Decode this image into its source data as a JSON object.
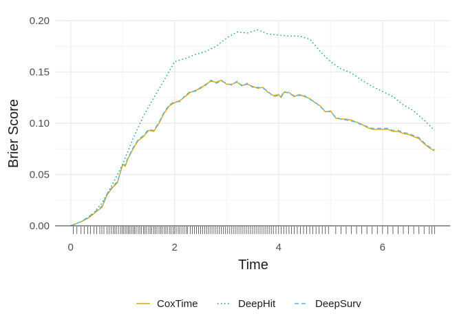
{
  "chart_data": {
    "type": "line",
    "title": "",
    "xlabel": "Time",
    "ylabel": "Brier Score",
    "xlim": [
      -0.3,
      7.3
    ],
    "ylim": [
      -0.0,
      0.2
    ],
    "x_ticks": [
      0,
      2,
      4,
      6
    ],
    "x_tick_labels": [
      "0",
      "2",
      "4",
      "6"
    ],
    "y_ticks": [
      0.0,
      0.05,
      0.1,
      0.15,
      0.2
    ],
    "y_tick_labels": [
      "0.00",
      "0.05",
      "0.10",
      "0.15",
      "0.20"
    ],
    "grid": true,
    "legend_position": "bottom",
    "rug": true,
    "rug_color": "#000000",
    "series": [
      {
        "name": "CoxTime",
        "color": "#E69F00",
        "dash": "solid",
        "points": [
          [
            0,
            0
          ],
          [
            0.2,
            0.004
          ],
          [
            0.35,
            0.008
          ],
          [
            0.5,
            0.014
          ],
          [
            0.6,
            0.018
          ],
          [
            0.7,
            0.03
          ],
          [
            0.8,
            0.037
          ],
          [
            0.9,
            0.042
          ],
          [
            1.0,
            0.06
          ],
          [
            1.05,
            0.058
          ],
          [
            1.1,
            0.065
          ],
          [
            1.2,
            0.075
          ],
          [
            1.3,
            0.083
          ],
          [
            1.4,
            0.087
          ],
          [
            1.5,
            0.093
          ],
          [
            1.6,
            0.092
          ],
          [
            1.7,
            0.1
          ],
          [
            1.8,
            0.11
          ],
          [
            1.9,
            0.117
          ],
          [
            2.0,
            0.12
          ],
          [
            2.1,
            0.122
          ],
          [
            2.2,
            0.126
          ],
          [
            2.3,
            0.13
          ],
          [
            2.4,
            0.132
          ],
          [
            2.5,
            0.134
          ],
          [
            2.6,
            0.138
          ],
          [
            2.7,
            0.141
          ],
          [
            2.8,
            0.14
          ],
          [
            2.9,
            0.142
          ],
          [
            3.0,
            0.138
          ],
          [
            3.1,
            0.138
          ],
          [
            3.2,
            0.14
          ],
          [
            3.3,
            0.137
          ],
          [
            3.4,
            0.138
          ],
          [
            3.5,
            0.136
          ],
          [
            3.6,
            0.134
          ],
          [
            3.7,
            0.135
          ],
          [
            3.8,
            0.13
          ],
          [
            3.9,
            0.127
          ],
          [
            4.0,
            0.128
          ],
          [
            4.05,
            0.125
          ],
          [
            4.1,
            0.13
          ],
          [
            4.2,
            0.13
          ],
          [
            4.3,
            0.126
          ],
          [
            4.4,
            0.128
          ],
          [
            4.5,
            0.126
          ],
          [
            4.6,
            0.124
          ],
          [
            4.7,
            0.12
          ],
          [
            4.8,
            0.117
          ],
          [
            4.9,
            0.111
          ],
          [
            5.0,
            0.112
          ],
          [
            5.1,
            0.105
          ],
          [
            5.2,
            0.104
          ],
          [
            5.3,
            0.104
          ],
          [
            5.4,
            0.103
          ],
          [
            5.5,
            0.101
          ],
          [
            5.6,
            0.099
          ],
          [
            5.7,
            0.096
          ],
          [
            5.8,
            0.094
          ],
          [
            5.9,
            0.094
          ],
          [
            6.0,
            0.094
          ],
          [
            6.1,
            0.094
          ],
          [
            6.2,
            0.092
          ],
          [
            6.3,
            0.092
          ],
          [
            6.4,
            0.09
          ],
          [
            6.5,
            0.089
          ],
          [
            6.6,
            0.087
          ],
          [
            6.7,
            0.085
          ],
          [
            6.8,
            0.08
          ],
          [
            6.9,
            0.076
          ],
          [
            7.0,
            0.073
          ]
        ]
      },
      {
        "name": "DeepHit",
        "color": "#009E73",
        "dash": "dotted",
        "points": [
          [
            0,
            0
          ],
          [
            0.2,
            0.004
          ],
          [
            0.4,
            0.01
          ],
          [
            0.6,
            0.022
          ],
          [
            0.8,
            0.04
          ],
          [
            1.0,
            0.06
          ],
          [
            1.2,
            0.085
          ],
          [
            1.4,
            0.107
          ],
          [
            1.6,
            0.125
          ],
          [
            1.8,
            0.142
          ],
          [
            2.0,
            0.16
          ],
          [
            2.2,
            0.163
          ],
          [
            2.4,
            0.167
          ],
          [
            2.6,
            0.17
          ],
          [
            2.8,
            0.175
          ],
          [
            3.0,
            0.183
          ],
          [
            3.2,
            0.189
          ],
          [
            3.4,
            0.188
          ],
          [
            3.6,
            0.191
          ],
          [
            3.8,
            0.187
          ],
          [
            4.0,
            0.186
          ],
          [
            4.2,
            0.185
          ],
          [
            4.4,
            0.185
          ],
          [
            4.6,
            0.182
          ],
          [
            4.8,
            0.17
          ],
          [
            5.0,
            0.16
          ],
          [
            5.2,
            0.153
          ],
          [
            5.4,
            0.149
          ],
          [
            5.6,
            0.142
          ],
          [
            5.8,
            0.136
          ],
          [
            6.0,
            0.131
          ],
          [
            6.2,
            0.126
          ],
          [
            6.4,
            0.118
          ],
          [
            6.6,
            0.112
          ],
          [
            6.8,
            0.103
          ],
          [
            7.0,
            0.093
          ]
        ]
      },
      {
        "name": "DeepSurv",
        "color": "#56B4E9",
        "dash": "dashed",
        "points": [
          [
            0,
            0
          ],
          [
            0.2,
            0.004
          ],
          [
            0.35,
            0.009
          ],
          [
            0.5,
            0.015
          ],
          [
            0.6,
            0.019
          ],
          [
            0.7,
            0.031
          ],
          [
            0.8,
            0.038
          ],
          [
            0.9,
            0.043
          ],
          [
            1.0,
            0.059
          ],
          [
            1.05,
            0.06
          ],
          [
            1.1,
            0.066
          ],
          [
            1.2,
            0.076
          ],
          [
            1.3,
            0.084
          ],
          [
            1.4,
            0.088
          ],
          [
            1.5,
            0.094
          ],
          [
            1.6,
            0.093
          ],
          [
            1.7,
            0.101
          ],
          [
            1.8,
            0.111
          ],
          [
            1.9,
            0.118
          ],
          [
            2.0,
            0.121
          ],
          [
            2.1,
            0.121
          ],
          [
            2.2,
            0.127
          ],
          [
            2.3,
            0.131
          ],
          [
            2.4,
            0.131
          ],
          [
            2.5,
            0.135
          ],
          [
            2.6,
            0.137
          ],
          [
            2.7,
            0.142
          ],
          [
            2.8,
            0.139
          ],
          [
            2.9,
            0.141
          ],
          [
            3.0,
            0.139
          ],
          [
            3.1,
            0.137
          ],
          [
            3.2,
            0.141
          ],
          [
            3.3,
            0.136
          ],
          [
            3.4,
            0.139
          ],
          [
            3.5,
            0.135
          ],
          [
            3.6,
            0.135
          ],
          [
            3.7,
            0.134
          ],
          [
            3.8,
            0.131
          ],
          [
            3.9,
            0.126
          ],
          [
            4.0,
            0.127
          ],
          [
            4.05,
            0.126
          ],
          [
            4.1,
            0.131
          ],
          [
            4.2,
            0.129
          ],
          [
            4.3,
            0.127
          ],
          [
            4.4,
            0.127
          ],
          [
            4.5,
            0.127
          ],
          [
            4.6,
            0.123
          ],
          [
            4.7,
            0.121
          ],
          [
            4.8,
            0.116
          ],
          [
            4.9,
            0.112
          ],
          [
            5.0,
            0.111
          ],
          [
            5.1,
            0.106
          ],
          [
            5.2,
            0.104
          ],
          [
            5.3,
            0.103
          ],
          [
            5.4,
            0.102
          ],
          [
            5.5,
            0.101
          ],
          [
            5.6,
            0.098
          ],
          [
            5.7,
            0.097
          ],
          [
            5.8,
            0.095
          ],
          [
            5.9,
            0.095
          ],
          [
            6.0,
            0.095
          ],
          [
            6.1,
            0.095
          ],
          [
            6.2,
            0.093
          ],
          [
            6.3,
            0.093
          ],
          [
            6.4,
            0.091
          ],
          [
            6.5,
            0.09
          ],
          [
            6.6,
            0.088
          ],
          [
            6.7,
            0.086
          ],
          [
            6.8,
            0.081
          ],
          [
            6.9,
            0.077
          ],
          [
            7.0,
            0.074
          ]
        ]
      }
    ],
    "rug_times": [
      0.05,
      0.12,
      0.2,
      0.26,
      0.33,
      0.38,
      0.45,
      0.5,
      0.56,
      0.6,
      0.64,
      0.7,
      0.74,
      0.78,
      0.82,
      0.85,
      0.88,
      0.92,
      0.96,
      0.99,
      1.02,
      1.05,
      1.08,
      1.11,
      1.14,
      1.17,
      1.2,
      1.23,
      1.26,
      1.3,
      1.33,
      1.36,
      1.4,
      1.43,
      1.46,
      1.5,
      1.53,
      1.56,
      1.6,
      1.63,
      1.66,
      1.7,
      1.73,
      1.76,
      1.8,
      1.83,
      1.86,
      1.9,
      1.93,
      1.97,
      2.0,
      2.03,
      2.07,
      2.1,
      2.14,
      2.18,
      2.22,
      2.25,
      2.3,
      2.34,
      2.38,
      2.42,
      2.46,
      2.5,
      2.54,
      2.58,
      2.62,
      2.66,
      2.7,
      2.74,
      2.78,
      2.82,
      2.86,
      2.9,
      2.94,
      2.98,
      3.02,
      3.06,
      3.1,
      3.14,
      3.18,
      3.22,
      3.26,
      3.3,
      3.34,
      3.38,
      3.42,
      3.46,
      3.5,
      3.54,
      3.58,
      3.62,
      3.66,
      3.7,
      3.74,
      3.78,
      3.82,
      3.86,
      3.9,
      3.95,
      4.0,
      4.05,
      4.1,
      4.15,
      4.2,
      4.25,
      4.3,
      4.36,
      4.42,
      4.48,
      4.54,
      4.6,
      4.66,
      4.72,
      4.78,
      4.84,
      4.9,
      4.96,
      5.1,
      5.2,
      5.3,
      5.4,
      5.5,
      5.6,
      5.7,
      5.8,
      5.9,
      6.0,
      6.1,
      6.2,
      6.3,
      6.4,
      6.5,
      6.6,
      6.7,
      6.8,
      6.9,
      6.95,
      7.0
    ]
  }
}
